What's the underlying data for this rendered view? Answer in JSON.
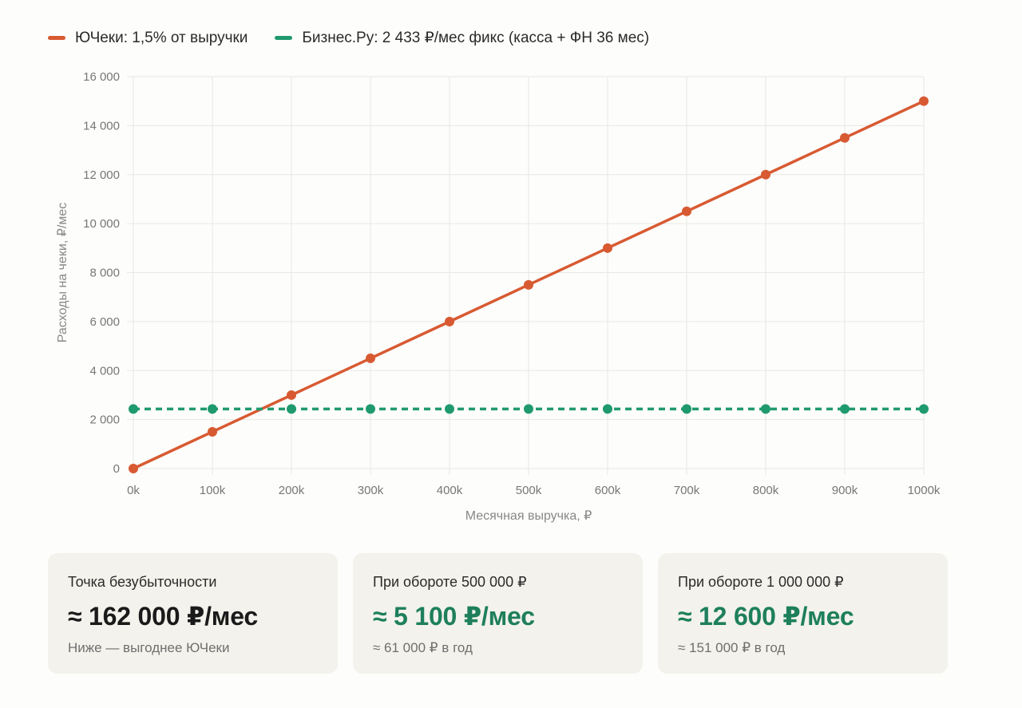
{
  "colors": {
    "series_a": "#d85a32",
    "series_b": "#1f9a6e",
    "grid": "#e8e8e4",
    "value_dark": "#1a1a1a",
    "value_green": "#1e7f5c"
  },
  "chart_data": {
    "type": "line",
    "x": [
      0,
      100000,
      200000,
      300000,
      400000,
      500000,
      600000,
      700000,
      800000,
      900000,
      1000000
    ],
    "x_tick_labels": [
      "0k",
      "100k",
      "200k",
      "300k",
      "400k",
      "500k",
      "600k",
      "700k",
      "800k",
      "900k",
      "1000k"
    ],
    "y_ticks": [
      0,
      2000,
      4000,
      6000,
      8000,
      10000,
      12000,
      14000,
      16000
    ],
    "y_tick_labels": [
      "0",
      "2 000",
      "4 000",
      "6 000",
      "8 000",
      "10 000",
      "12 000",
      "14 000",
      "16 000"
    ],
    "xlim": [
      0,
      1000000
    ],
    "ylim": [
      0,
      16000
    ],
    "xlabel": "Месячная выручка, ₽",
    "ylabel": "Расходы на чеки, ₽/мес",
    "grid": true,
    "legend_position": "top-left",
    "series": [
      {
        "name": "ЮЧеки: 1,5% от выручки",
        "style": "solid",
        "color": "#d85a32",
        "values": [
          0,
          1500,
          3000,
          4500,
          6000,
          7500,
          9000,
          10500,
          12000,
          13500,
          15000
        ]
      },
      {
        "name": "Бизнес.Ру: 2 433 ₽/мес фикс (касса + ФН 36 мес)",
        "style": "dashed",
        "color": "#1f9a6e",
        "values": [
          2433,
          2433,
          2433,
          2433,
          2433,
          2433,
          2433,
          2433,
          2433,
          2433,
          2433
        ]
      }
    ]
  },
  "cards": [
    {
      "label": "Точка безубыточности",
      "value": "≈ 162 000 ₽/мес",
      "note": "Ниже — выгоднее ЮЧеки",
      "tone": "dark"
    },
    {
      "label": "При обороте 500 000 ₽",
      "value": "≈ 5 100 ₽/мес",
      "note": "≈ 61 000 ₽ в год",
      "tone": "green"
    },
    {
      "label": "При обороте 1 000 000 ₽",
      "value": "≈ 12 600 ₽/мес",
      "note": "≈ 151 000 ₽ в год",
      "tone": "green"
    }
  ]
}
